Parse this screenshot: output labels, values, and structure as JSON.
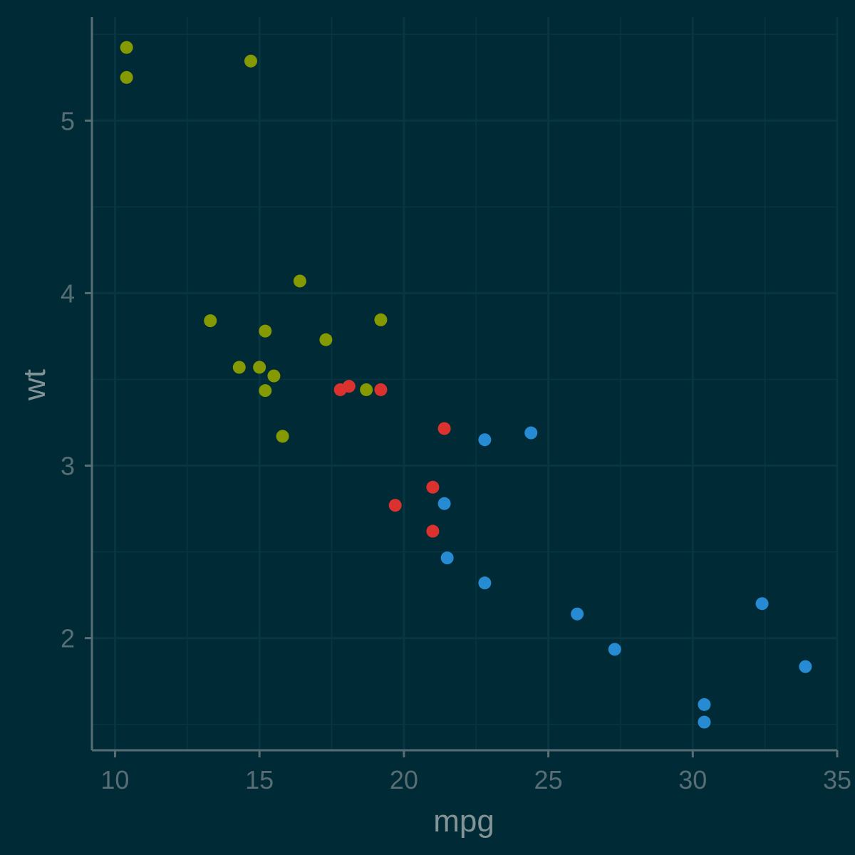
{
  "chart_data": {
    "type": "scatter",
    "xlabel": "mpg",
    "ylabel": "wt",
    "xlim": [
      9.2,
      35.0
    ],
    "ylim": [
      1.35,
      5.6
    ],
    "x_ticks": [
      10,
      15,
      20,
      25,
      30,
      35
    ],
    "x_tick_labels": [
      "10",
      "15",
      "20",
      "25",
      "30",
      "35"
    ],
    "x_minor_ticks": [
      12.5,
      17.5,
      22.5,
      27.5,
      32.5
    ],
    "y_ticks": [
      2,
      3,
      4,
      5
    ],
    "y_tick_labels": [
      "2",
      "3",
      "4",
      "5"
    ],
    "y_minor_ticks": [
      1.5,
      2.5,
      3.5,
      4.5,
      5.5
    ],
    "grid": true,
    "legend": "none",
    "colors": {
      "background": "#002b36",
      "grid": "#073642",
      "axis": "#586e75",
      "tick_text": "#586e75",
      "title_text": "#839496"
    },
    "series": [
      {
        "color": "#859900",
        "points": [
          [
            10.4,
            5.424
          ],
          [
            10.4,
            5.25
          ],
          [
            14.7,
            5.345
          ],
          [
            16.4,
            4.07
          ],
          [
            13.3,
            3.84
          ],
          [
            15.2,
            3.78
          ],
          [
            17.3,
            3.73
          ],
          [
            19.2,
            3.845
          ],
          [
            14.3,
            3.57
          ],
          [
            15.0,
            3.57
          ],
          [
            15.5,
            3.52
          ],
          [
            15.2,
            3.435
          ],
          [
            18.7,
            3.44
          ],
          [
            15.8,
            3.17
          ]
        ]
      },
      {
        "color": "#dc322f",
        "points": [
          [
            17.8,
            3.44
          ],
          [
            18.1,
            3.46
          ],
          [
            19.2,
            3.44
          ],
          [
            21.4,
            3.215
          ],
          [
            21.0,
            2.875
          ],
          [
            19.7,
            2.77
          ],
          [
            21.0,
            2.62
          ]
        ]
      },
      {
        "color": "#268bd2",
        "points": [
          [
            22.8,
            3.15
          ],
          [
            24.4,
            3.19
          ],
          [
            21.4,
            2.78
          ],
          [
            21.5,
            2.465
          ],
          [
            22.8,
            2.32
          ],
          [
            26.0,
            2.14
          ],
          [
            27.3,
            1.935
          ],
          [
            32.4,
            2.2
          ],
          [
            33.9,
            1.835
          ],
          [
            30.4,
            1.615
          ],
          [
            30.4,
            1.513
          ]
        ]
      }
    ]
  }
}
